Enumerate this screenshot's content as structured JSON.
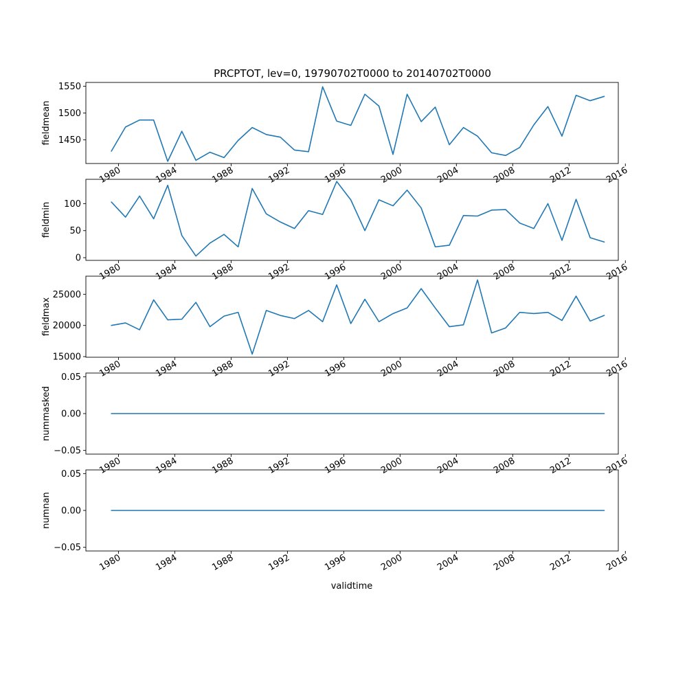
{
  "chart_data": {
    "type": "line",
    "title": "PRCPTOT, lev=0, 19790702T0000 to 20140702T0000",
    "xlabel": "validtime",
    "x_axis_type": "date",
    "x_dates": [
      "1979-07-02",
      "1980-07-02",
      "1981-07-02",
      "1982-07-02",
      "1983-07-02",
      "1984-07-02",
      "1985-07-02",
      "1986-07-02",
      "1987-07-02",
      "1988-07-02",
      "1989-07-02",
      "1990-07-02",
      "1991-07-02",
      "1992-07-02",
      "1993-07-02",
      "1994-07-02",
      "1995-07-02",
      "1996-07-02",
      "1997-07-02",
      "1998-07-02",
      "1999-07-02",
      "2000-07-02",
      "2001-07-02",
      "2002-07-02",
      "2003-07-02",
      "2004-07-02",
      "2005-07-02",
      "2006-07-02",
      "2007-07-02",
      "2008-07-02",
      "2009-07-02",
      "2010-07-02",
      "2011-07-02",
      "2012-07-02",
      "2013-07-02",
      "2014-07-02"
    ],
    "xlim": [
      "1977-09-08",
      "2015-07-02"
    ],
    "x_ticks": [
      "1980",
      "1984",
      "1988",
      "1992",
      "1996",
      "2000",
      "2004",
      "2008",
      "2012",
      "2016"
    ],
    "line_color": "#1f77b4",
    "grid": false,
    "panels": [
      {
        "ylabel": "fieldmean",
        "ylim": [
          1406,
          1557
        ],
        "y_ticks": [
          1450,
          1500,
          1550
        ],
        "y_tick_labels": [
          "1450",
          "1500",
          "1550"
        ],
        "values": [
          1429,
          1474,
          1487,
          1487,
          1410,
          1466,
          1412,
          1427,
          1417,
          1449,
          1473,
          1460,
          1455,
          1431,
          1428,
          1549,
          1485,
          1477,
          1535,
          1513,
          1423,
          1535,
          1484,
          1511,
          1441,
          1473,
          1457,
          1426,
          1421,
          1436,
          1478,
          1512,
          1457,
          1533,
          1523,
          1531
        ]
      },
      {
        "ylabel": "fieldmin",
        "ylim": [
          -5,
          145
        ],
        "y_ticks": [
          0,
          50,
          100
        ],
        "y_tick_labels": [
          "0",
          "50",
          "100"
        ],
        "values": [
          103,
          75,
          114,
          72,
          134,
          41,
          3,
          27,
          43,
          20,
          128,
          81,
          66,
          54,
          87,
          80,
          141,
          107,
          50,
          107,
          96,
          125,
          92,
          20,
          23,
          78,
          77,
          88,
          89,
          64,
          54,
          100,
          32,
          108,
          37,
          29
        ]
      },
      {
        "ylabel": "fieldmax",
        "ylim": [
          14900,
          27900
        ],
        "y_ticks": [
          15000,
          20000,
          25000
        ],
        "y_tick_labels": [
          "15000",
          "20000",
          "25000"
        ],
        "values": [
          20000,
          20400,
          19300,
          24100,
          20900,
          21000,
          23700,
          19800,
          21500,
          22100,
          15400,
          22400,
          21600,
          21100,
          22400,
          20600,
          26500,
          20300,
          24200,
          20600,
          21900,
          22800,
          25900,
          22800,
          19800,
          20100,
          27300,
          18800,
          19600,
          22100,
          21900,
          22100,
          20800,
          24700,
          20700,
          21600
        ]
      },
      {
        "ylabel": "nummasked",
        "ylim": [
          -0.055,
          0.055
        ],
        "y_ticks": [
          -0.05,
          0.0,
          0.05
        ],
        "y_tick_labels": [
          "−0.05",
          "0.00",
          "0.05"
        ],
        "values": [
          0,
          0,
          0,
          0,
          0,
          0,
          0,
          0,
          0,
          0,
          0,
          0,
          0,
          0,
          0,
          0,
          0,
          0,
          0,
          0,
          0,
          0,
          0,
          0,
          0,
          0,
          0,
          0,
          0,
          0,
          0,
          0,
          0,
          0,
          0,
          0
        ]
      },
      {
        "ylabel": "numnan",
        "ylim": [
          -0.055,
          0.055
        ],
        "y_ticks": [
          -0.05,
          0.0,
          0.05
        ],
        "y_tick_labels": [
          "−0.05",
          "0.00",
          "0.05"
        ],
        "values": [
          0,
          0,
          0,
          0,
          0,
          0,
          0,
          0,
          0,
          0,
          0,
          0,
          0,
          0,
          0,
          0,
          0,
          0,
          0,
          0,
          0,
          0,
          0,
          0,
          0,
          0,
          0,
          0,
          0,
          0,
          0,
          0,
          0,
          0,
          0,
          0
        ]
      }
    ]
  }
}
